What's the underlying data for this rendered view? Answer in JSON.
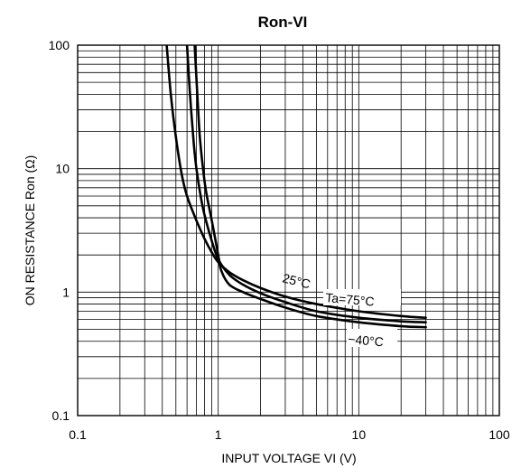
{
  "chart_data": {
    "type": "line",
    "title": "Ron-VI",
    "xlabel": "INPUT VOLTAGE VI (V)",
    "ylabel": "ON RESISTANCE Ron (Ω)",
    "x_scale": "log",
    "y_scale": "log",
    "xlim": [
      0.1,
      100
    ],
    "ylim": [
      0.1,
      100
    ],
    "x_ticks": [
      "0.1",
      "1",
      "10",
      "100"
    ],
    "y_ticks": [
      "0.1",
      "1",
      "10",
      "100"
    ],
    "grid": true,
    "annotations": [
      "25°C",
      "Ta=75°C",
      "−40°C"
    ],
    "series": [
      {
        "name": "Ta=75°C",
        "x": [
          0.43,
          0.46,
          0.5,
          0.55,
          0.6,
          0.7,
          0.8,
          0.9,
          1.0,
          1.2,
          1.5,
          2,
          3,
          5,
          10,
          20,
          30
        ],
        "y": [
          100,
          40,
          18,
          9,
          6,
          3.8,
          2.7,
          2.1,
          1.75,
          1.45,
          1.25,
          1.08,
          0.92,
          0.8,
          0.7,
          0.64,
          0.62
        ]
      },
      {
        "name": "25°C",
        "x": [
          0.6,
          0.63,
          0.67,
          0.7,
          0.75,
          0.8,
          0.9,
          1.0,
          1.2,
          1.5,
          2,
          3,
          5,
          10,
          20,
          30
        ],
        "y": [
          100,
          40,
          16,
          10,
          6,
          4.2,
          2.6,
          1.85,
          1.38,
          1.15,
          0.98,
          0.83,
          0.7,
          0.62,
          0.58,
          0.57
        ]
      },
      {
        "name": "−40°C",
        "x": [
          0.68,
          0.71,
          0.74,
          0.78,
          0.82,
          0.9,
          1.0,
          1.05,
          1.2,
          1.5,
          2,
          3,
          5,
          10,
          20,
          30
        ],
        "y": [
          100,
          40,
          18,
          10,
          6.5,
          3.8,
          2.0,
          1.5,
          1.15,
          1.0,
          0.88,
          0.75,
          0.64,
          0.57,
          0.53,
          0.52
        ]
      }
    ]
  }
}
